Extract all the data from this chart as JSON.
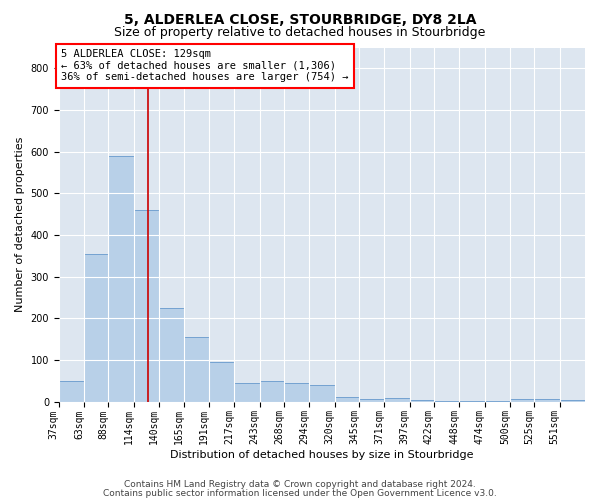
{
  "title": "5, ALDERLEA CLOSE, STOURBRIDGE, DY8 2LA",
  "subtitle": "Size of property relative to detached houses in Stourbridge",
  "xlabel": "Distribution of detached houses by size in Stourbridge",
  "ylabel": "Number of detached properties",
  "footer_line1": "Contains HM Land Registry data © Crown copyright and database right 2024.",
  "footer_line2": "Contains public sector information licensed under the Open Government Licence v3.0.",
  "annotation_line1": "5 ALDERLEA CLOSE: 129sqm",
  "annotation_line2": "← 63% of detached houses are smaller (1,306)",
  "annotation_line3": "36% of semi-detached houses are larger (754) →",
  "bar_color": "#b8d0e8",
  "bar_edge_color": "#6699cc",
  "background_color": "#dde6f0",
  "grid_color": "#ffffff",
  "red_line_color": "#cc0000",
  "bins_left": [
    37,
    63,
    88,
    114,
    140,
    165,
    191,
    217,
    243,
    268,
    294,
    320,
    345,
    371,
    397,
    422,
    448,
    474,
    500,
    525,
    551
  ],
  "counts": [
    50,
    355,
    590,
    460,
    225,
    155,
    95,
    45,
    50,
    45,
    40,
    10,
    5,
    8,
    3,
    2,
    2,
    1,
    5,
    5,
    3
  ],
  "red_line_x": 129,
  "ylim": [
    0,
    850
  ],
  "yticks": [
    0,
    100,
    200,
    300,
    400,
    500,
    600,
    700,
    800
  ],
  "tick_labels": [
    "37sqm",
    "63sqm",
    "88sqm",
    "114sqm",
    "140sqm",
    "165sqm",
    "191sqm",
    "217sqm",
    "243sqm",
    "268sqm",
    "294sqm",
    "320sqm",
    "345sqm",
    "371sqm",
    "397sqm",
    "422sqm",
    "448sqm",
    "474sqm",
    "500sqm",
    "525sqm",
    "551sqm"
  ],
  "title_fontsize": 10,
  "subtitle_fontsize": 9,
  "axis_label_fontsize": 8,
  "tick_fontsize": 7,
  "annotation_fontsize": 7.5,
  "footer_fontsize": 6.5,
  "ylabel_fontsize": 8
}
